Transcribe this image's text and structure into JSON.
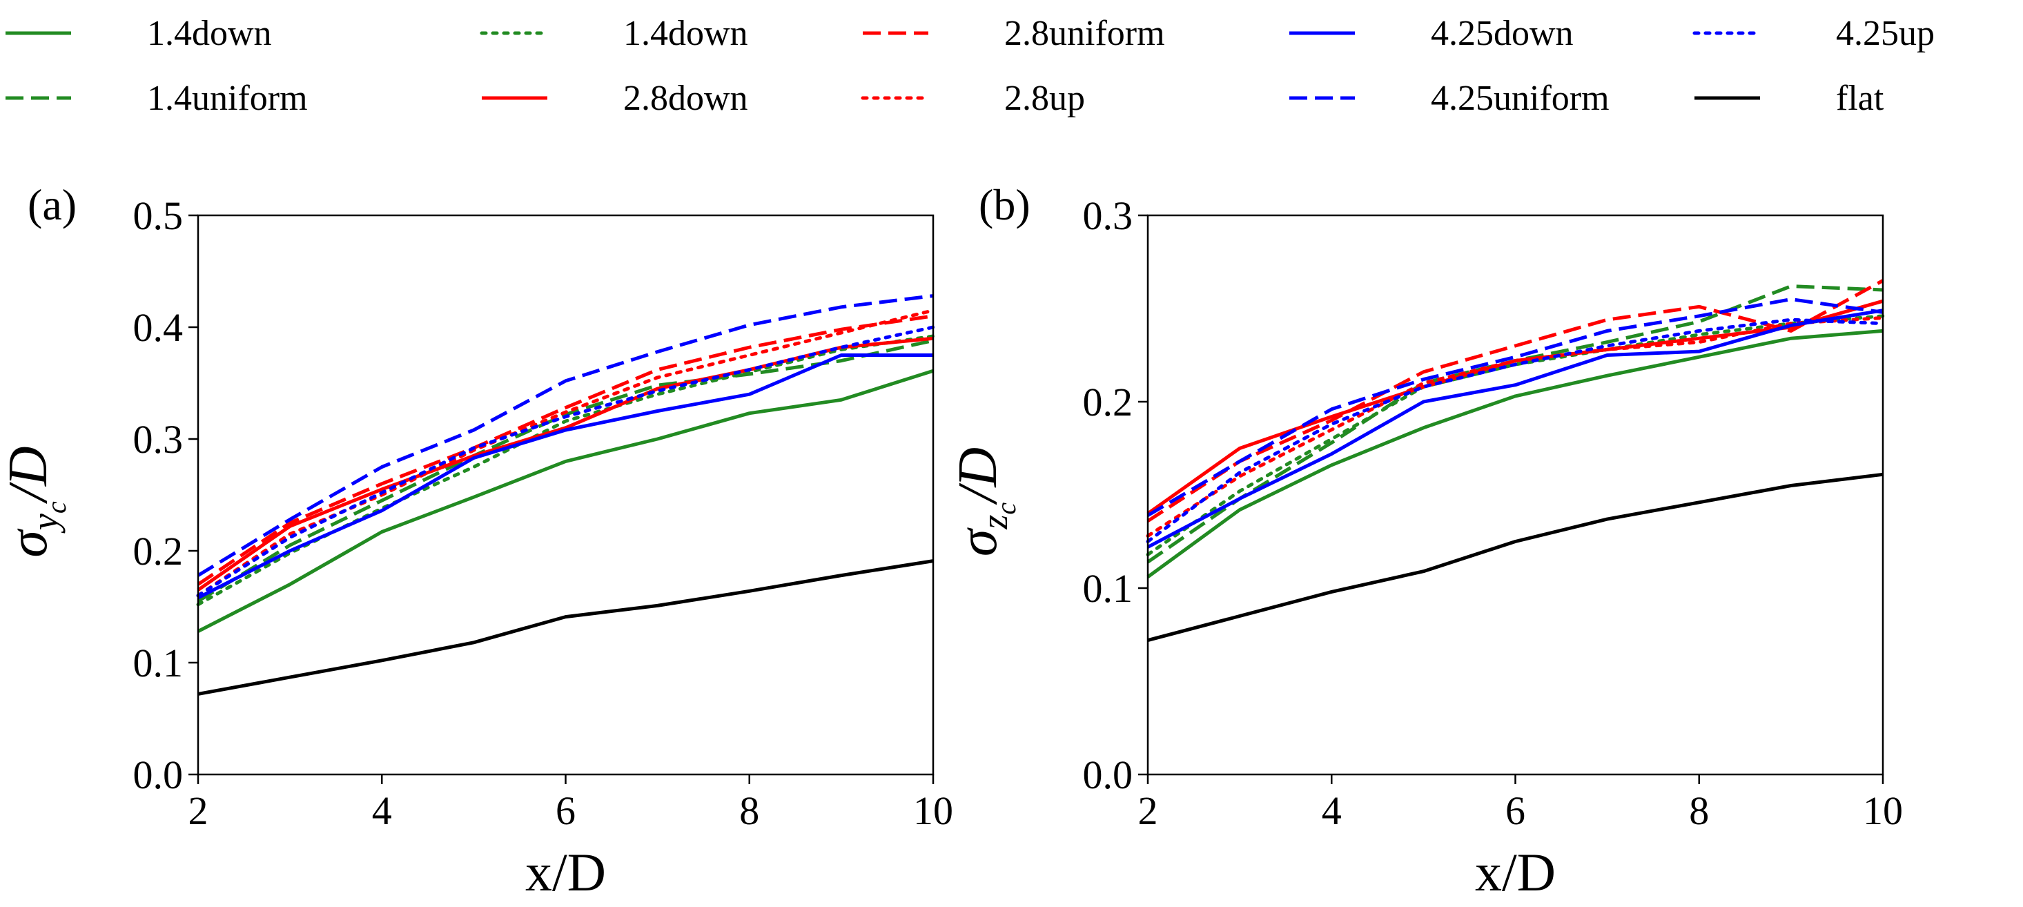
{
  "chart_data": [
    {
      "type": "line",
      "panel_label": "(a)",
      "xlabel": "x/D",
      "ylabel": {
        "symbol": "σ",
        "sub": "y",
        "subsub": "c",
        "rest": "/D"
      },
      "xlim": [
        2,
        10
      ],
      "ylim": [
        0.0,
        0.5
      ],
      "xticks": [
        "2",
        "4",
        "6",
        "8",
        "10"
      ],
      "yticks": [
        "0.0",
        "0.1",
        "0.2",
        "0.3",
        "0.4",
        "0.5"
      ],
      "grid": false,
      "x": [
        2,
        3,
        4,
        5,
        6,
        7,
        8,
        9,
        10
      ],
      "series": [
        {
          "name": "1.4down",
          "color": "#228B22",
          "dash": "solid",
          "values": [
            0.128,
            0.17,
            0.217,
            0.248,
            0.28,
            0.3,
            0.323,
            0.335,
            0.361
          ]
        },
        {
          "name": "1.4uniform",
          "color": "#228B22",
          "dash": "dashed",
          "values": [
            0.155,
            0.205,
            0.245,
            0.285,
            0.322,
            0.348,
            0.358,
            0.37,
            0.388
          ]
        },
        {
          "name": "1.4down",
          "color": "#228B22",
          "dash": "dotted",
          "values": [
            0.152,
            0.198,
            0.238,
            0.275,
            0.316,
            0.34,
            0.36,
            0.38,
            0.392
          ]
        },
        {
          "name": "2.8down",
          "color": "#FF0000",
          "dash": "solid",
          "values": [
            0.165,
            0.222,
            0.255,
            0.285,
            0.31,
            0.345,
            0.362,
            0.382,
            0.39
          ]
        },
        {
          "name": "2.8uniform",
          "color": "#FF0000",
          "dash": "dashed",
          "values": [
            0.17,
            0.225,
            0.26,
            0.292,
            0.328,
            0.362,
            0.382,
            0.398,
            0.41
          ]
        },
        {
          "name": "2.8up",
          "color": "#FF0000",
          "dash": "dotted",
          "values": [
            0.16,
            0.215,
            0.25,
            0.29,
            0.324,
            0.355,
            0.375,
            0.395,
            0.415
          ]
        },
        {
          "name": "4.25down",
          "color": "#0000FF",
          "dash": "solid",
          "values": [
            0.158,
            0.2,
            0.236,
            0.283,
            0.308,
            0.325,
            0.34,
            0.375,
            0.375
          ]
        },
        {
          "name": "4.25uniform",
          "color": "#0000FF",
          "dash": "dashed",
          "values": [
            0.178,
            0.228,
            0.275,
            0.308,
            0.352,
            0.378,
            0.402,
            0.418,
            0.428
          ]
        },
        {
          "name": "4.25up",
          "color": "#0000FF",
          "dash": "dotted",
          "values": [
            0.16,
            0.212,
            0.252,
            0.292,
            0.32,
            0.343,
            0.362,
            0.382,
            0.4
          ]
        },
        {
          "name": "flat",
          "color": "#000000",
          "dash": "solid",
          "values": [
            0.072,
            0.087,
            0.102,
            0.118,
            0.141,
            0.151,
            0.164,
            0.178,
            0.191
          ]
        }
      ]
    },
    {
      "type": "line",
      "panel_label": "(b)",
      "xlabel": "x/D",
      "ylabel": {
        "symbol": "σ",
        "sub": "z",
        "subsub": "c",
        "rest": "/D"
      },
      "xlim": [
        2,
        10
      ],
      "ylim": [
        0.0,
        0.3
      ],
      "xticks": [
        "2",
        "4",
        "6",
        "8",
        "10"
      ],
      "yticks": [
        "0.0",
        "0.1",
        "0.2",
        "0.3"
      ],
      "grid": false,
      "x": [
        2,
        3,
        4,
        5,
        6,
        7,
        8,
        9,
        10
      ],
      "series": [
        {
          "name": "1.4down",
          "color": "#228B22",
          "dash": "solid",
          "values": [
            0.106,
            0.142,
            0.166,
            0.186,
            0.203,
            0.214,
            0.224,
            0.234,
            0.238
          ]
        },
        {
          "name": "1.4uniform",
          "color": "#228B22",
          "dash": "dashed",
          "values": [
            0.114,
            0.148,
            0.178,
            0.21,
            0.222,
            0.232,
            0.243,
            0.262,
            0.26
          ]
        },
        {
          "name": "1.4down",
          "color": "#228B22",
          "dash": "dotted",
          "values": [
            0.118,
            0.152,
            0.18,
            0.208,
            0.22,
            0.228,
            0.236,
            0.242,
            0.246
          ]
        },
        {
          "name": "2.8down",
          "color": "#FF0000",
          "dash": "solid",
          "values": [
            0.14,
            0.175,
            0.192,
            0.208,
            0.222,
            0.228,
            0.234,
            0.24,
            0.254
          ]
        },
        {
          "name": "2.8uniform",
          "color": "#FF0000",
          "dash": "dashed",
          "values": [
            0.136,
            0.168,
            0.19,
            0.216,
            0.23,
            0.244,
            0.251,
            0.238,
            0.265
          ]
        },
        {
          "name": "2.8up",
          "color": "#FF0000",
          "dash": "dotted",
          "values": [
            0.128,
            0.16,
            0.185,
            0.21,
            0.222,
            0.228,
            0.232,
            0.242,
            0.245
          ]
        },
        {
          "name": "4.25down",
          "color": "#0000FF",
          "dash": "solid",
          "values": [
            0.122,
            0.148,
            0.172,
            0.2,
            0.209,
            0.225,
            0.227,
            0.241,
            0.249
          ]
        },
        {
          "name": "4.25uniform",
          "color": "#0000FF",
          "dash": "dashed",
          "values": [
            0.139,
            0.168,
            0.196,
            0.212,
            0.224,
            0.238,
            0.246,
            0.255,
            0.248
          ]
        },
        {
          "name": "4.25up",
          "color": "#0000FF",
          "dash": "dotted",
          "values": [
            0.125,
            0.162,
            0.188,
            0.208,
            0.22,
            0.23,
            0.238,
            0.244,
            0.242
          ]
        },
        {
          "name": "flat",
          "color": "#000000",
          "dash": "solid",
          "values": [
            0.072,
            0.085,
            0.098,
            0.109,
            0.125,
            0.137,
            0.146,
            0.155,
            0.161
          ]
        }
      ]
    }
  ],
  "legend": {
    "placement": "top",
    "entries": [
      {
        "name": "1.4down",
        "color": "#228B22",
        "dash": "solid"
      },
      {
        "name": "1.4down",
        "color": "#228B22",
        "dash": "dotted"
      },
      {
        "name": "2.8uniform",
        "color": "#FF0000",
        "dash": "dashed"
      },
      {
        "name": "4.25down",
        "color": "#0000FF",
        "dash": "solid"
      },
      {
        "name": "4.25up",
        "color": "#0000FF",
        "dash": "dotted"
      },
      {
        "name": "1.4uniform",
        "color": "#228B22",
        "dash": "dashed"
      },
      {
        "name": "2.8down",
        "color": "#FF0000",
        "dash": "solid"
      },
      {
        "name": "2.8up",
        "color": "#FF0000",
        "dash": "dotted"
      },
      {
        "name": "4.25uniform",
        "color": "#0000FF",
        "dash": "dashed"
      },
      {
        "name": "flat",
        "color": "#000000",
        "dash": "solid"
      }
    ]
  }
}
